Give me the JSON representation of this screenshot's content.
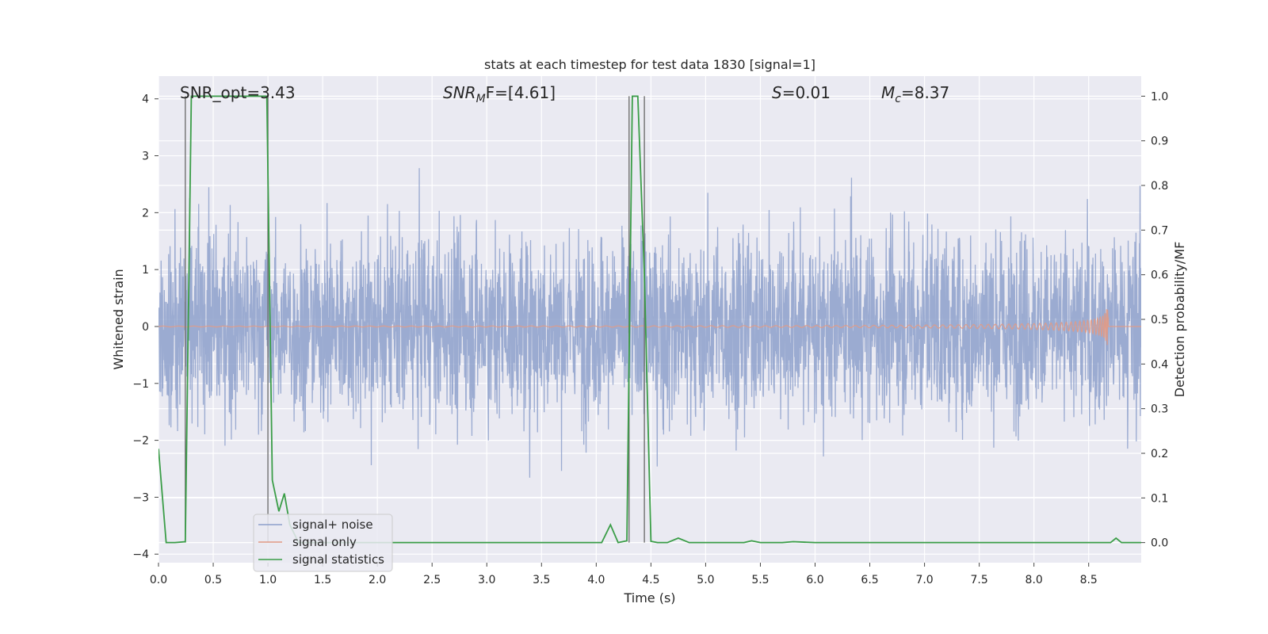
{
  "chart_data": {
    "type": "line",
    "title": "stats at each timestep for test data 1830 [signal=1]",
    "xlabel": "Time (s)",
    "ylabel_left": "Whitened strain",
    "ylabel_right": "Detection probability/MF",
    "xlim": [
      0,
      8.98
    ],
    "ylim_left": [
      -4.15,
      4.4
    ],
    "ylim_right": [
      -0.045,
      1.045
    ],
    "x_ticks": [
      "0.0",
      "0.5",
      "1.0",
      "1.5",
      "2.0",
      "2.5",
      "3.0",
      "3.5",
      "4.0",
      "4.5",
      "5.0",
      "5.5",
      "6.0",
      "6.5",
      "7.0",
      "7.5",
      "8.0",
      "8.5"
    ],
    "y_left_ticks": [
      "4",
      "3",
      "2",
      "1",
      "0",
      "−1",
      "−2",
      "−3",
      "−4"
    ],
    "y_right_ticks": [
      "1.0",
      "0.9",
      "0.8",
      "0.7",
      "0.6",
      "0.5",
      "0.4",
      "0.3",
      "0.2",
      "0.1",
      "0.0"
    ],
    "annotations": {
      "snr_opt": "SNR_opt=3.43",
      "snr_mf_main": "SNR",
      "snr_mf_sub": "M",
      "snr_mf_rest": "F=[4.61]",
      "s_main": "S",
      "s_rest": "=0.01",
      "mc_main": "M",
      "mc_sub": "c",
      "mc_rest": "=8.37"
    },
    "series": [
      {
        "name": "signal+ noise",
        "color": "#8da0cb",
        "note": "whitened noise, |amplitude| mostly within ±2.7, spikes to about ±4"
      },
      {
        "name": "signal only",
        "color": "#e29a84",
        "note": "chirp waveform, amplitude grows to about 0.5 at t≈8.68 s then stops"
      },
      {
        "name": "signal statistics",
        "color": "#3a9d47",
        "x": [
          0,
          0.07,
          0.15,
          0.245,
          0.3,
          0.33,
          0.5,
          0.7,
          0.9,
          0.99,
          1.04,
          1.1,
          1.15,
          1.2,
          1.28,
          1.4,
          2,
          3,
          3.8,
          4.05,
          4.13,
          4.2,
          4.28,
          4.33,
          4.38,
          4.44,
          4.5,
          4.56,
          4.65,
          4.75,
          4.85,
          5,
          5.35,
          5.42,
          5.5,
          5.7,
          5.8,
          6,
          7,
          8,
          8.7,
          8.75,
          8.8,
          8.9,
          8.98
        ],
        "y": [
          0.21,
          0.0,
          0.0,
          0.002,
          1.0,
          1.0,
          1.0,
          1.0,
          1.0,
          1.0,
          0.14,
          0.07,
          0.11,
          0.04,
          0.0,
          0.0,
          0.0,
          0.0,
          0.0,
          0.0,
          0.04,
          0.0,
          0.004,
          1.0,
          1.0,
          0.6,
          0.003,
          0.0,
          0.0,
          0.01,
          0.0,
          0.0,
          0.0,
          0.004,
          0.0,
          0.0,
          0.002,
          0.0,
          0.0,
          0.0,
          0.0,
          0.01,
          0.0,
          0.0,
          0.0
        ]
      }
    ],
    "vlines": [
      0.245,
      1.0,
      4.3,
      4.44
    ],
    "legend": {
      "position": "lower-left",
      "entries": [
        "signal+ noise",
        "signal only",
        "signal statistics"
      ]
    },
    "grid": true,
    "colors": {
      "background": "#eaeaf2",
      "grid": "#ffffff",
      "vline": "#707070"
    }
  }
}
